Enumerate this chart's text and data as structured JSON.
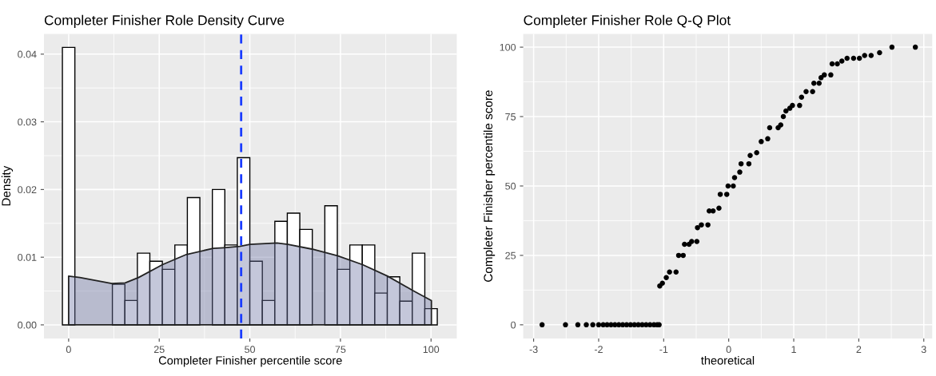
{
  "chart_data": [
    {
      "type": "histogram",
      "title": "Completer Finisher Role Density Curve",
      "xlabel": "Completer Finisher percentile score",
      "ylabel": "Density",
      "series": [
        {
          "type": "histogram",
          "color": "#ffffff",
          "bins": [
            -1.72,
            1.72,
            5.17,
            8.62,
            12.07,
            15.52,
            18.97,
            22.41,
            25.86,
            29.31,
            32.76,
            36.21,
            39.66,
            43.1,
            46.55,
            50.0,
            53.45,
            56.9,
            60.34,
            63.79,
            67.24,
            70.69,
            74.14,
            77.59,
            81.03,
            84.48,
            87.93,
            91.38,
            94.83,
            98.28,
            101.72
          ],
          "values": [
            0.041,
            0,
            0,
            0,
            0.006,
            0.0036,
            0.0106,
            0.0094,
            0.0082,
            0.0118,
            0.0188,
            0,
            0.02,
            0.0118,
            0.0247,
            0.0094,
            0.0036,
            0.0153,
            0.0165,
            0.0141,
            0,
            0.0176,
            0.0082,
            0.0118,
            0.0118,
            0.0047,
            0.0071,
            0.0035,
            0.0106,
            0.0024
          ]
        },
        {
          "type": "area",
          "color": "#b8bbce",
          "x": [
            0,
            3.1,
            11.9,
            15.6,
            19.3,
            25.9,
            32.5,
            39.9,
            42.8,
            47.2,
            50.0,
            57.5,
            60.5,
            67.1,
            74.2,
            81.1,
            88.0,
            94.9,
            100.1
          ],
          "values": [
            0.0072,
            0.007,
            0.0061,
            0.0062,
            0.007,
            0.0089,
            0.0104,
            0.0113,
            0.0114,
            0.0116,
            0.0119,
            0.0121,
            0.0119,
            0.0112,
            0.0102,
            0.0089,
            0.0072,
            0.0051,
            0.0036
          ]
        }
      ],
      "ref_lines": [
        {
          "axis": "x",
          "value": 47.6,
          "color": "#1a3cff",
          "line_style": "dashed"
        }
      ],
      "xlim": [
        -6.8,
        107.1
      ],
      "xticks": [
        0,
        25,
        50,
        75,
        100
      ],
      "ylim": [
        -0.002,
        0.043
      ],
      "yticks": [
        {
          "value": 0,
          "label": "0.00"
        },
        {
          "value": 0.01,
          "label": "0.01"
        },
        {
          "value": 0.02,
          "label": "0.02"
        },
        {
          "value": 0.03,
          "label": "0.03"
        },
        {
          "value": 0.04,
          "label": "0.04"
        }
      ],
      "grid": true
    },
    {
      "type": "scatter",
      "title": "Completer Finisher Role Q-Q Plot",
      "xlabel": "theoretical",
      "ylabel": "Completer Finisher percentile score",
      "marker": "circle",
      "series": [
        {
          "color": "#000000",
          "x": [
            -2.87,
            -2.51,
            -2.32,
            -2.19,
            -2.09,
            -2.0,
            -1.93,
            -1.87,
            -1.81,
            -1.75,
            -1.69,
            -1.63,
            -1.57,
            -1.51,
            -1.45,
            -1.39,
            -1.33,
            -1.27,
            -1.21,
            -1.15,
            -1.1,
            -1.07,
            -1.06,
            -1.02,
            -0.96,
            -0.91,
            -0.81,
            -0.77,
            -0.7,
            -0.68,
            -0.61,
            -0.57,
            -0.49,
            -0.48,
            -0.42,
            -0.32,
            -0.3,
            -0.24,
            -0.15,
            -0.13,
            -0.03,
            -0.01,
            0.07,
            0.09,
            0.17,
            0.19,
            0.31,
            0.33,
            0.43,
            0.5,
            0.6,
            0.63,
            0.76,
            0.8,
            0.84,
            0.88,
            0.94,
            0.98,
            1.09,
            1.12,
            1.19,
            1.29,
            1.31,
            1.39,
            1.42,
            1.47,
            1.57,
            1.59,
            1.67,
            1.74,
            1.82,
            1.92,
            2.01,
            2.09,
            2.19,
            2.32,
            2.51,
            2.87
          ],
          "values": [
            0,
            0,
            0,
            0,
            0,
            0,
            0,
            0,
            0,
            0,
            0,
            0,
            0,
            0,
            0,
            0,
            0,
            0,
            0,
            0,
            0,
            0,
            14,
            15,
            17,
            19,
            19,
            25,
            25,
            29,
            29,
            30,
            30,
            35,
            36,
            36,
            41,
            41,
            42,
            47,
            47,
            50,
            50,
            53,
            55,
            58,
            58,
            61,
            62,
            66,
            67,
            71,
            71,
            72,
            75,
            77,
            78,
            79,
            79,
            82,
            84,
            84,
            87,
            87,
            89,
            90,
            90,
            94,
            94,
            95,
            96,
            96,
            96,
            97,
            97,
            98,
            100,
            100
          ]
        }
      ],
      "xlim": [
        -3.16,
        3.13
      ],
      "xticks": [
        -3,
        -2,
        -1,
        0,
        1,
        2,
        3
      ],
      "ylim": [
        -4.9,
        104.8
      ],
      "yticks": [
        0,
        25,
        50,
        75,
        100
      ],
      "grid": true
    }
  ]
}
